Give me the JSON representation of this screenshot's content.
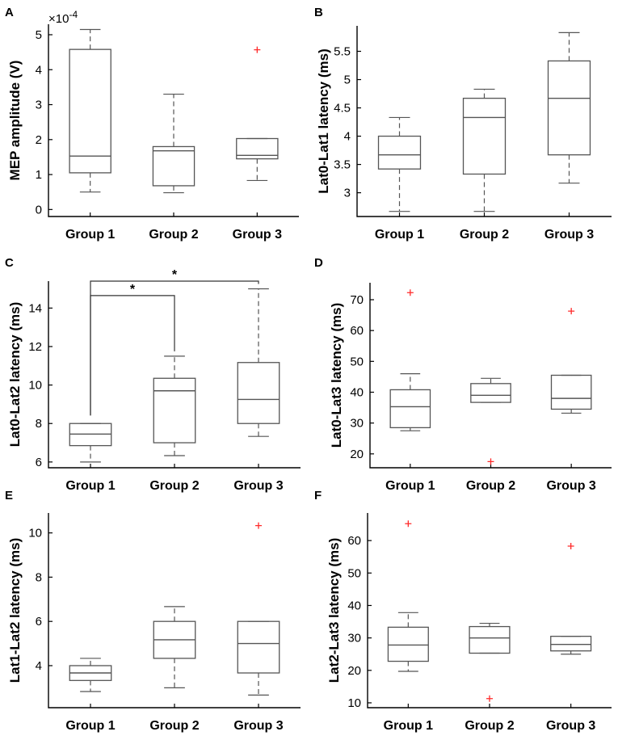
{
  "chart_data": [
    {
      "panel": "A",
      "type": "box",
      "ylabel": "MEP amplitude (V)",
      "multiplier": "×10",
      "multiplier_exp": "-4",
      "ylim": [
        -0.2,
        5.3
      ],
      "yticks": [
        0,
        1,
        2,
        3,
        4,
        5
      ],
      "categories": [
        "Group 1",
        "Group 2",
        "Group 3"
      ],
      "boxes": [
        {
          "lw": 0.5,
          "q1": 1.05,
          "median": 1.53,
          "q3": 4.58,
          "uw": 5.15,
          "outliers": []
        },
        {
          "lw": 0.48,
          "q1": 0.68,
          "median": 1.68,
          "q3": 1.8,
          "uw": 3.3,
          "outliers": []
        },
        {
          "lw": 0.83,
          "q1": 1.45,
          "median": 1.55,
          "q3": 2.03,
          "uw": 2.03,
          "outliers": [
            4.57
          ]
        }
      ],
      "significance": []
    },
    {
      "panel": "B",
      "type": "box",
      "ylabel": "Lat0-Lat1 latency (ms)",
      "ylim": [
        2.58,
        5.95
      ],
      "yticks": [
        3,
        3.5,
        4,
        4.5,
        5,
        5.5
      ],
      "categories": [
        "Group 1",
        "Group 2",
        "Group 3"
      ],
      "boxes": [
        {
          "lw": 2.67,
          "q1": 3.42,
          "median": 3.67,
          "q3": 4.0,
          "uw": 4.33,
          "outliers": []
        },
        {
          "lw": 2.67,
          "q1": 3.33,
          "median": 4.33,
          "q3": 4.67,
          "uw": 4.83,
          "outliers": []
        },
        {
          "lw": 3.17,
          "q1": 3.67,
          "median": 4.67,
          "q3": 5.33,
          "uw": 5.83,
          "outliers": []
        }
      ],
      "significance": []
    },
    {
      "panel": "C",
      "type": "box",
      "ylabel": "Lat0-Lat2 latency (ms)",
      "ylim": [
        5.7,
        15.4
      ],
      "yticks": [
        6,
        8,
        10,
        12,
        14
      ],
      "categories": [
        "Group 1",
        "Group 2",
        "Group 3"
      ],
      "boxes": [
        {
          "lw": 6.0,
          "q1": 6.85,
          "median": 7.45,
          "q3": 8.0,
          "uw": 8.0,
          "outliers": []
        },
        {
          "lw": 6.33,
          "q1": 7.0,
          "median": 9.7,
          "q3": 10.35,
          "uw": 11.5,
          "outliers": []
        },
        {
          "lw": 7.33,
          "q1": 8.0,
          "median": 9.25,
          "q3": 11.17,
          "uw": 15.0,
          "outliers": []
        }
      ],
      "significance": [
        {
          "from": 0,
          "to": 1,
          "y": 14.65,
          "label": "*"
        },
        {
          "from": 0,
          "to": 2,
          "y": 15.4,
          "label": "*"
        }
      ]
    },
    {
      "panel": "D",
      "type": "box",
      "ylabel": "Lat0-Lat3 latency (ms)",
      "ylim": [
        15.5,
        75.5
      ],
      "yticks": [
        20,
        30,
        40,
        50,
        60,
        70
      ],
      "categories": [
        "Group 1",
        "Group 2",
        "Group 3"
      ],
      "boxes": [
        {
          "lw": 27.5,
          "q1": 28.5,
          "median": 35.3,
          "q3": 40.8,
          "uw": 46.0,
          "outliers": [
            72.3
          ]
        },
        {
          "lw": 36.7,
          "q1": 36.7,
          "median": 39.0,
          "q3": 42.8,
          "uw": 44.5,
          "outliers": [
            17.5
          ]
        },
        {
          "lw": 33.2,
          "q1": 34.5,
          "median": 38.0,
          "q3": 45.5,
          "uw": 45.5,
          "outliers": [
            66.3
          ]
        }
      ],
      "significance": []
    },
    {
      "panel": "E",
      "type": "box",
      "ylabel": "Lat1-Lat2 latency (ms)",
      "ylim": [
        2.1,
        10.9
      ],
      "yticks": [
        4,
        6,
        8,
        10
      ],
      "categories": [
        "Group 1",
        "Group 2",
        "Group 3"
      ],
      "boxes": [
        {
          "lw": 2.83,
          "q1": 3.33,
          "median": 3.67,
          "q3": 4.0,
          "uw": 4.33,
          "outliers": []
        },
        {
          "lw": 3.0,
          "q1": 4.33,
          "median": 5.17,
          "q3": 6.0,
          "uw": 6.67,
          "outliers": []
        },
        {
          "lw": 2.67,
          "q1": 3.67,
          "median": 5.0,
          "q3": 6.0,
          "uw": 6.0,
          "outliers": [
            10.33
          ]
        }
      ],
      "significance": []
    },
    {
      "panel": "F",
      "type": "box",
      "ylabel": "Lat2-Lat3 latency (ms)",
      "ylim": [
        8.5,
        68.5
      ],
      "yticks": [
        10,
        20,
        30,
        40,
        50,
        60
      ],
      "categories": [
        "Group 1",
        "Group 2",
        "Group 3"
      ],
      "boxes": [
        {
          "lw": 19.7,
          "q1": 22.8,
          "median": 27.8,
          "q3": 33.3,
          "uw": 37.8,
          "outliers": [
            65.2
          ]
        },
        {
          "lw": 25.3,
          "q1": 25.3,
          "median": 30.0,
          "q3": 33.5,
          "uw": 34.5,
          "outliers": [
            11.3
          ]
        },
        {
          "lw": 25.0,
          "q1": 26.0,
          "median": 28.0,
          "q3": 30.5,
          "uw": 30.5,
          "outliers": [
            58.3
          ]
        }
      ],
      "significance": []
    }
  ]
}
